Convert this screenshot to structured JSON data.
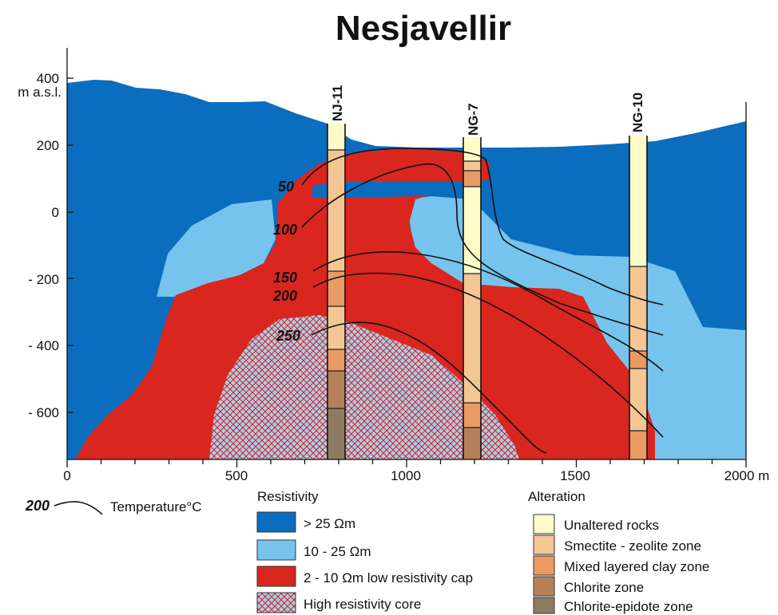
{
  "title": "Nesjavellir",
  "y_axis": {
    "unit_top": "400",
    "unit_label": "m a.s.l.",
    "ticks": [
      "200",
      "0",
      "- 200",
      "- 400",
      "- 600"
    ]
  },
  "x_axis": {
    "ticks": [
      "0",
      "500",
      "1000",
      "1500"
    ],
    "last_tick": "2000 m"
  },
  "wells": [
    "NJ-11",
    "NG-7",
    "NG-10"
  ],
  "isotherms": [
    "50",
    "100",
    "150",
    "200",
    "250"
  ],
  "temperature_legend": {
    "value": "200",
    "label": "Temperature°C"
  },
  "resistivity_legend": {
    "heading": "Resistivity",
    "items": [
      {
        "label": "> 25 Ωm",
        "color": "#0b6dbd"
      },
      {
        "label": "10 - 25 Ωm",
        "color": "#76c3ee"
      },
      {
        "label": "2 - 10 Ωm low resistivity cap",
        "color": "#d9261f"
      },
      {
        "label": "High resistivity core",
        "color": "#9ec9ea"
      }
    ]
  },
  "alteration_legend": {
    "heading": "Alteration",
    "items": [
      {
        "label": "Unaltered rocks",
        "color": "#fdfcc8"
      },
      {
        "label": "Smectite - zeolite zone",
        "color": "#f3c694"
      },
      {
        "label": "Mixed layered clay zone",
        "color": "#ea9a63"
      },
      {
        "label": "Chlorite zone",
        "color": "#b5805a"
      },
      {
        "label": "Chlorite-epidote zone",
        "color": "#8e7c62"
      }
    ]
  }
}
